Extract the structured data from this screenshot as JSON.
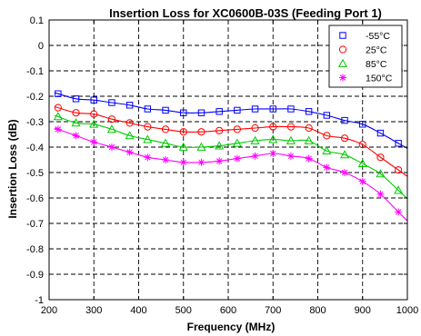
{
  "chart_data": {
    "type": "line",
    "title": "Insertion Loss for XC0600B-03S (Feeding Port 1)",
    "xlabel": "Frequency (MHz)",
    "ylabel": "Insertion Loss (dB)",
    "xlim": [
      200,
      1000
    ],
    "ylim": [
      -1,
      0.1
    ],
    "xticks": [
      "200",
      "300",
      "400",
      "500",
      "600",
      "700",
      "800",
      "900",
      "1000"
    ],
    "yticks": [
      "0.1",
      "0",
      "-0.1",
      "-0.2",
      "-0.3",
      "-0.4",
      "-0.5",
      "-0.6",
      "-0.7",
      "-0.8",
      "-0.9",
      "-1"
    ],
    "grid": true,
    "legend_position": "top-right",
    "x": [
      220,
      260,
      300,
      340,
      380,
      420,
      460,
      500,
      540,
      580,
      620,
      660,
      700,
      740,
      780,
      820,
      860,
      900,
      940,
      980
    ],
    "series": [
      {
        "name": "-55°C",
        "color": "#0000ff",
        "marker": "square",
        "values": [
          -0.19,
          -0.21,
          -0.215,
          -0.225,
          -0.235,
          -0.25,
          -0.255,
          -0.265,
          -0.265,
          -0.26,
          -0.255,
          -0.25,
          -0.25,
          -0.25,
          -0.26,
          -0.275,
          -0.295,
          -0.31,
          -0.345,
          -0.385
        ]
      },
      {
        "name": "25°C",
        "color": "#ff0000",
        "marker": "circle",
        "values": [
          -0.245,
          -0.265,
          -0.27,
          -0.29,
          -0.305,
          -0.32,
          -0.33,
          -0.34,
          -0.34,
          -0.335,
          -0.33,
          -0.325,
          -0.32,
          -0.32,
          -0.325,
          -0.355,
          -0.365,
          -0.39,
          -0.44,
          -0.49
        ]
      },
      {
        "name": "85°C",
        "color": "#00cc00",
        "marker": "triangle",
        "values": [
          -0.28,
          -0.305,
          -0.31,
          -0.33,
          -0.355,
          -0.37,
          -0.385,
          -0.4,
          -0.4,
          -0.395,
          -0.385,
          -0.375,
          -0.37,
          -0.375,
          -0.375,
          -0.415,
          -0.43,
          -0.465,
          -0.505,
          -0.57
        ]
      },
      {
        "name": "150°C",
        "color": "#ff00ff",
        "marker": "star",
        "values": [
          -0.33,
          -0.355,
          -0.38,
          -0.4,
          -0.42,
          -0.44,
          -0.45,
          -0.46,
          -0.46,
          -0.455,
          -0.445,
          -0.435,
          -0.425,
          -0.435,
          -0.445,
          -0.48,
          -0.5,
          -0.535,
          -0.585,
          -0.655
        ]
      }
    ]
  }
}
